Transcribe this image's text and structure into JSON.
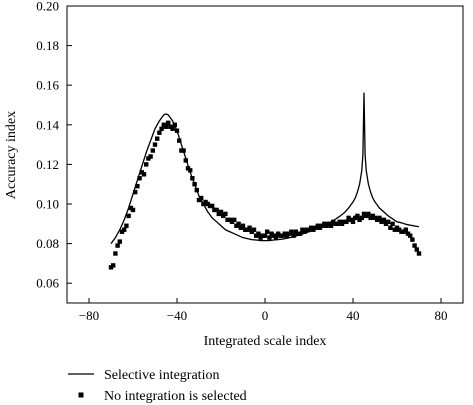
{
  "chart_data": {
    "type": "line",
    "xlabel": "Integrated scale index",
    "ylabel": "Accuracy index",
    "xlim": [
      -90,
      90
    ],
    "ylim": [
      0.05,
      0.2
    ],
    "xticks": [
      -80,
      -40,
      0,
      40,
      80
    ],
    "yticks": [
      0.06,
      0.08,
      0.1,
      0.12,
      0.14,
      0.16,
      0.18,
      0.2
    ],
    "xtick_labels": [
      "−80",
      "−40",
      "0",
      "40",
      "80"
    ],
    "ytick_labels": [
      "0.06",
      "0.08",
      "0.10",
      "0.12",
      "0.14",
      "0.16",
      "0.18",
      "0.20"
    ],
    "grid": false,
    "legend_position": "bottom",
    "series": [
      {
        "name": "Selective integration",
        "style": "line",
        "color": "#000000",
        "x": [
          -70,
          -68,
          -66,
          -64,
          -62,
          -60,
          -58,
          -56,
          -54,
          -52,
          -50,
          -48,
          -46,
          -45,
          -44,
          -42,
          -40,
          -38,
          -36,
          -34,
          -32,
          -30,
          -28,
          -26,
          -24,
          -22,
          -20,
          -18,
          -16,
          -14,
          -12,
          -10,
          -8,
          -6,
          -4,
          -2,
          0,
          2,
          4,
          6,
          8,
          10,
          12,
          14,
          16,
          18,
          20,
          22,
          24,
          26,
          28,
          30,
          32,
          34,
          36,
          38,
          40,
          41,
          42,
          43,
          44,
          44.5,
          45,
          45.5,
          46,
          47,
          48,
          49,
          50,
          52,
          54,
          56,
          58,
          60,
          62,
          64,
          66,
          68,
          70
        ],
        "y": [
          0.08,
          0.083,
          0.087,
          0.092,
          0.098,
          0.105,
          0.112,
          0.119,
          0.126,
          0.132,
          0.138,
          0.142,
          0.145,
          0.1455,
          0.145,
          0.142,
          0.137,
          0.13,
          0.123,
          0.116,
          0.11,
          0.104,
          0.1,
          0.096,
          0.093,
          0.091,
          0.089,
          0.087,
          0.086,
          0.085,
          0.084,
          0.083,
          0.0825,
          0.082,
          0.0818,
          0.0815,
          0.0815,
          0.0815,
          0.0818,
          0.082,
          0.0823,
          0.0827,
          0.0832,
          0.0838,
          0.0845,
          0.0852,
          0.086,
          0.0868,
          0.0877,
          0.0887,
          0.0898,
          0.091,
          0.0923,
          0.0938,
          0.0955,
          0.098,
          0.101,
          0.103,
          0.106,
          0.11,
          0.117,
          0.125,
          0.156,
          0.125,
          0.117,
          0.11,
          0.106,
          0.103,
          0.101,
          0.098,
          0.096,
          0.094,
          0.0925,
          0.091,
          0.0905,
          0.0898,
          0.0893,
          0.0889,
          0.0885
        ]
      },
      {
        "name": "No integration is selected",
        "style": "markers",
        "color": "#000000",
        "x": [
          -70,
          -69,
          -68,
          -67,
          -66,
          -65,
          -64,
          -63,
          -62,
          -61,
          -60,
          -59,
          -58,
          -57,
          -56,
          -55,
          -54,
          -53,
          -52,
          -51,
          -50,
          -49,
          -48,
          -47,
          -46,
          -45,
          -44,
          -43,
          -42,
          -41,
          -40,
          -39,
          -38,
          -37,
          -36,
          -35,
          -34,
          -33,
          -32,
          -31,
          -30,
          -29,
          -28,
          -27,
          -26,
          -25,
          -24,
          -23,
          -22,
          -21,
          -20,
          -19,
          -18,
          -17,
          -16,
          -15,
          -14,
          -13,
          -12,
          -11,
          -10,
          -9,
          -8,
          -7,
          -6,
          -5,
          -4,
          -3,
          -2,
          -1,
          0,
          1,
          2,
          3,
          4,
          5,
          6,
          7,
          8,
          9,
          10,
          11,
          12,
          13,
          14,
          15,
          16,
          17,
          18,
          19,
          20,
          21,
          22,
          23,
          24,
          25,
          26,
          27,
          28,
          29,
          30,
          31,
          32,
          33,
          34,
          35,
          36,
          37,
          38,
          39,
          40,
          41,
          42,
          43,
          44,
          45,
          46,
          47,
          48,
          49,
          50,
          51,
          52,
          53,
          54,
          55,
          56,
          57,
          58,
          59,
          60,
          61,
          62,
          63,
          64,
          65,
          66,
          67,
          68,
          69,
          70
        ],
        "y": [
          0.068,
          0.069,
          0.075,
          0.079,
          0.081,
          0.086,
          0.087,
          0.089,
          0.094,
          0.098,
          0.097,
          0.106,
          0.109,
          0.113,
          0.116,
          0.115,
          0.12,
          0.123,
          0.124,
          0.127,
          0.13,
          0.133,
          0.136,
          0.138,
          0.14,
          0.139,
          0.141,
          0.139,
          0.138,
          0.14,
          0.137,
          0.132,
          0.127,
          0.127,
          0.122,
          0.118,
          0.117,
          0.113,
          0.11,
          0.107,
          0.102,
          0.103,
          0.1,
          0.101,
          0.1,
          0.099,
          0.099,
          0.097,
          0.097,
          0.095,
          0.096,
          0.094,
          0.095,
          0.092,
          0.092,
          0.091,
          0.092,
          0.089,
          0.09,
          0.088,
          0.089,
          0.087,
          0.087,
          0.088,
          0.086,
          0.087,
          0.084,
          0.085,
          0.083,
          0.084,
          0.084,
          0.086,
          0.083,
          0.085,
          0.084,
          0.083,
          0.085,
          0.084,
          0.084,
          0.085,
          0.084,
          0.085,
          0.086,
          0.084,
          0.086,
          0.085,
          0.085,
          0.087,
          0.086,
          0.087,
          0.087,
          0.088,
          0.087,
          0.088,
          0.089,
          0.088,
          0.089,
          0.09,
          0.089,
          0.09,
          0.089,
          0.091,
          0.09,
          0.09,
          0.091,
          0.09,
          0.091,
          0.091,
          0.093,
          0.092,
          0.091,
          0.093,
          0.094,
          0.092,
          0.093,
          0.095,
          0.094,
          0.095,
          0.093,
          0.094,
          0.093,
          0.092,
          0.093,
          0.091,
          0.092,
          0.09,
          0.091,
          0.088,
          0.09,
          0.087,
          0.088,
          0.087,
          0.086,
          0.086,
          0.087,
          0.085,
          0.084,
          0.082,
          0.079,
          0.077,
          0.075
        ]
      }
    ]
  }
}
